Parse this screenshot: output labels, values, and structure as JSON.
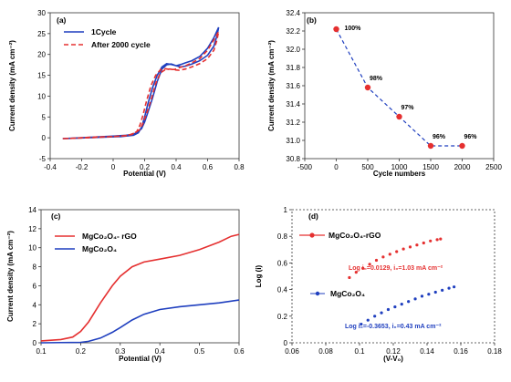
{
  "chart_data": [
    {
      "panel": "(a)",
      "type": "line",
      "xlabel": "Potential (V)",
      "ylabel": "Current density (mA cm⁻²)",
      "xlim": [
        -0.4,
        0.8
      ],
      "ylim": [
        -5,
        30
      ],
      "xticks": [
        "-0.4",
        "-0.2",
        "0",
        "0.2",
        "0.4",
        "0.6",
        "0.8"
      ],
      "yticks": [
        "-5",
        "0",
        "5",
        "10",
        "15",
        "20",
        "25",
        "30"
      ],
      "legend": "top-left",
      "series": [
        {
          "name": "1Cycle",
          "color": "#1f3fbf",
          "style": "solid",
          "x": [
            -0.32,
            -0.1,
            0.05,
            0.13,
            0.16,
            0.18,
            0.2,
            0.22,
            0.25,
            0.28,
            0.31,
            0.34,
            0.37,
            0.4,
            0.43,
            0.46,
            0.5,
            0.55,
            0.6,
            0.64,
            0.67,
            0.66,
            0.64,
            0.6,
            0.55,
            0.5,
            0.46,
            0.43,
            0.4,
            0.37,
            0.34,
            0.31,
            0.28,
            0.25,
            0.22,
            0.2,
            0.18,
            0.15,
            0.12,
            0.08,
            0.0,
            -0.1,
            -0.2,
            -0.32
          ],
          "y": [
            -0.2,
            0.1,
            0.3,
            0.6,
            1.2,
            2.5,
            5.0,
            8.0,
            12.0,
            15.0,
            17.0,
            17.8,
            17.6,
            17.3,
            17.6,
            18.0,
            18.5,
            19.5,
            21.5,
            24.0,
            26.5,
            24.5,
            22.0,
            19.8,
            18.5,
            17.7,
            17.2,
            17.0,
            17.3,
            17.7,
            17.5,
            16.5,
            13.5,
            9.5,
            6.0,
            3.8,
            2.2,
            1.2,
            0.8,
            0.6,
            0.4,
            0.2,
            0.0,
            -0.2
          ]
        },
        {
          "name": "After 2000 cycle",
          "color": "#e53030",
          "style": "dashed",
          "x": [
            -0.32,
            -0.1,
            0.05,
            0.12,
            0.15,
            0.17,
            0.19,
            0.21,
            0.24,
            0.27,
            0.3,
            0.33,
            0.36,
            0.39,
            0.42,
            0.46,
            0.5,
            0.55,
            0.6,
            0.64,
            0.67,
            0.66,
            0.64,
            0.6,
            0.55,
            0.5,
            0.46,
            0.42,
            0.39,
            0.36,
            0.33,
            0.3,
            0.27,
            0.24,
            0.21,
            0.19,
            0.17,
            0.14,
            0.11,
            0.08,
            0.0,
            -0.1,
            -0.2,
            -0.32
          ],
          "y": [
            -0.2,
            0.1,
            0.4,
            0.8,
            1.5,
            3.0,
            5.5,
            8.5,
            12.5,
            15.0,
            16.3,
            16.6,
            16.4,
            16.4,
            16.8,
            17.3,
            18.0,
            19.0,
            21.0,
            23.5,
            25.5,
            23.5,
            21.0,
            19.0,
            17.8,
            17.0,
            16.5,
            16.2,
            16.3,
            16.5,
            16.3,
            15.6,
            13.0,
            9.0,
            5.5,
            3.5,
            2.0,
            1.2,
            0.8,
            0.5,
            0.3,
            0.2,
            0.0,
            -0.2
          ]
        }
      ]
    },
    {
      "panel": "(b)",
      "type": "line",
      "xlabel": "Cycle numbers",
      "ylabel": "Current density (mA cm⁻²)",
      "xlim": [
        -500,
        2500
      ],
      "ylim": [
        30.8,
        32.4
      ],
      "xticks": [
        "-500",
        "0",
        "500",
        "1000",
        "1500",
        "2000",
        "2500"
      ],
      "yticks": [
        "30.8",
        "31.0",
        "31.2",
        "31.4",
        "31.6",
        "31.8",
        "32.0",
        "32.2",
        "32.4"
      ],
      "series": [
        {
          "color": "#1f3fbf",
          "marker_color": "#e53030",
          "style": "dashed",
          "x": [
            0,
            500,
            1000,
            1500,
            2000
          ],
          "y": [
            32.22,
            31.58,
            31.26,
            30.94,
            30.94
          ],
          "labels": [
            "100%",
            "98%",
            "97%",
            "96%",
            "96%"
          ]
        }
      ]
    },
    {
      "panel": "(c)",
      "type": "line",
      "xlabel": "Potential (V)",
      "ylabel": "Current density (mA cm⁻²)",
      "xlim": [
        0.1,
        0.6
      ],
      "ylim": [
        0,
        14
      ],
      "xticks": [
        "0.1",
        "0.2",
        "0.3",
        "0.4",
        "0.5",
        "0.6"
      ],
      "yticks": [
        "0",
        "2",
        "4",
        "6",
        "8",
        "10",
        "12",
        "14"
      ],
      "legend": "top-left",
      "series": [
        {
          "name": "MgCo₂O₄- rGO",
          "color": "#e53030",
          "x": [
            0.1,
            0.15,
            0.18,
            0.2,
            0.22,
            0.25,
            0.28,
            0.3,
            0.33,
            0.36,
            0.4,
            0.45,
            0.5,
            0.55,
            0.58,
            0.6
          ],
          "y": [
            0.2,
            0.35,
            0.6,
            1.2,
            2.2,
            4.2,
            6.0,
            7.0,
            8.0,
            8.5,
            8.8,
            9.2,
            9.8,
            10.6,
            11.2,
            11.4
          ]
        },
        {
          "name": "MgCo₂O₄",
          "color": "#1f3fbf",
          "x": [
            0.1,
            0.2,
            0.22,
            0.25,
            0.28,
            0.3,
            0.33,
            0.36,
            0.4,
            0.45,
            0.5,
            0.55,
            0.6
          ],
          "y": [
            0.0,
            0.05,
            0.15,
            0.5,
            1.1,
            1.6,
            2.4,
            3.0,
            3.5,
            3.8,
            4.0,
            4.2,
            4.5
          ]
        }
      ]
    },
    {
      "panel": "(d)",
      "type": "scatter",
      "xlabel": "(V-V₀)",
      "ylabel": "Log (i)",
      "xlim": [
        0.06,
        0.18
      ],
      "ylim": [
        0,
        1
      ],
      "xticks": [
        "0.06",
        "0.08",
        "0.1",
        "0.12",
        "0.14",
        "0.16",
        "0.18"
      ],
      "yticks": [
        "0",
        "0.2",
        "0.4",
        "0.6",
        "0.8",
        "1"
      ],
      "legend": "inline",
      "series": [
        {
          "name": "MgCo₂O₄-rGO",
          "color": "#e53030",
          "x": [
            0.094,
            0.098,
            0.102,
            0.106,
            0.11,
            0.114,
            0.118,
            0.122,
            0.126,
            0.13,
            0.134,
            0.138,
            0.142,
            0.146,
            0.148
          ],
          "y": [
            0.49,
            0.53,
            0.56,
            0.59,
            0.62,
            0.645,
            0.665,
            0.685,
            0.705,
            0.72,
            0.735,
            0.75,
            0.765,
            0.775,
            0.78
          ]
        },
        {
          "name": "MgCo₂O₄",
          "color": "#1f3fbf",
          "x": [
            0.101,
            0.105,
            0.109,
            0.113,
            0.117,
            0.121,
            0.125,
            0.129,
            0.133,
            0.137,
            0.141,
            0.145,
            0.149,
            0.153,
            0.156
          ],
          "y": [
            0.14,
            0.17,
            0.2,
            0.225,
            0.25,
            0.27,
            0.29,
            0.31,
            0.33,
            0.35,
            0.365,
            0.38,
            0.395,
            0.41,
            0.42
          ]
        }
      ],
      "annotations": [
        {
          "text": "Log i₀=0.0129,  i₀=1.03 mA cm⁻²",
          "color": "#e53030"
        },
        {
          "text": "Log i₀=-0.3653,  i₀=0.43 mA cm⁻²",
          "color": "#1f3fbf"
        }
      ]
    }
  ]
}
